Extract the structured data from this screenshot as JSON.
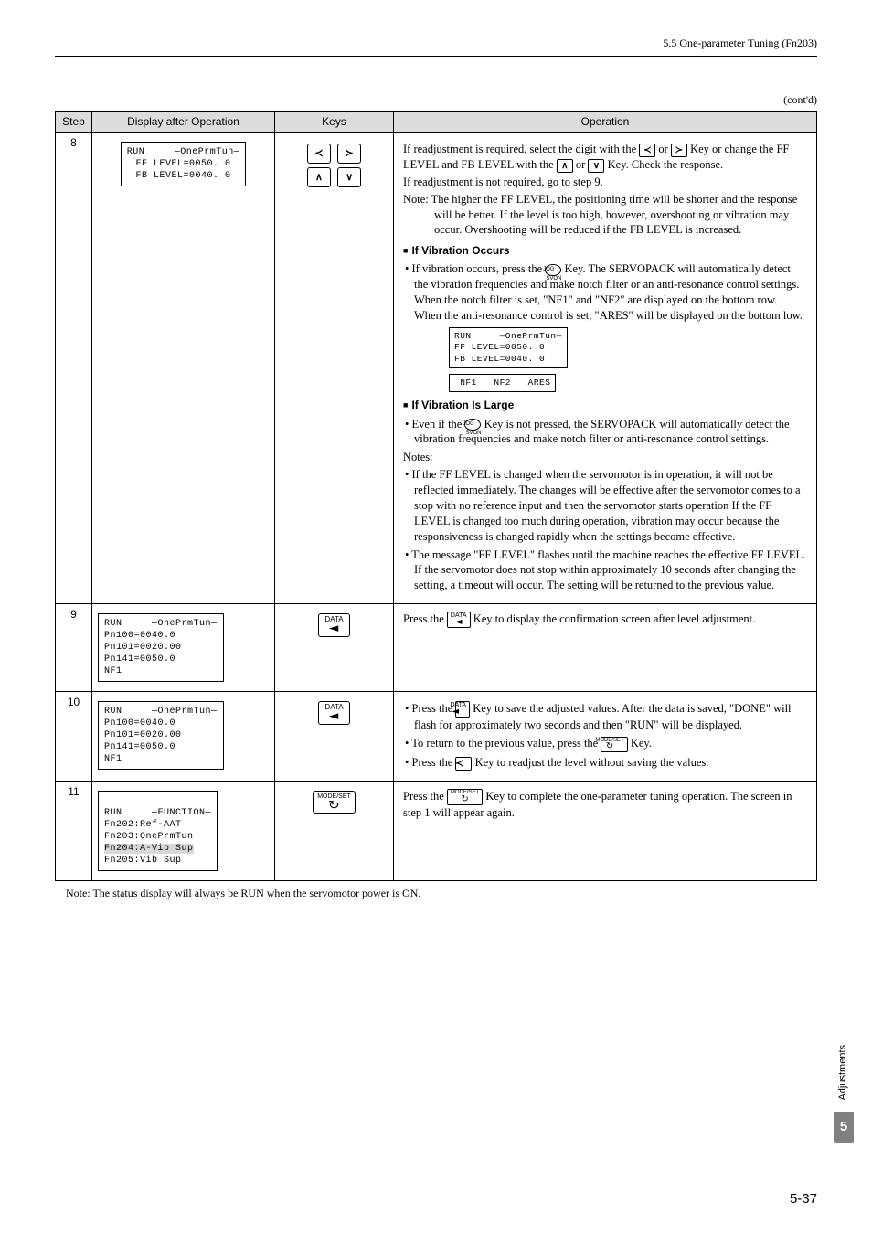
{
  "header": {
    "section": "5.5  One-parameter Tuning (Fn203)"
  },
  "contd": "(cont'd)",
  "table": {
    "headers": {
      "step": "Step",
      "display": "Display after Operation",
      "keys": "Keys",
      "operation": "Operation"
    },
    "rows": [
      {
        "step": "8",
        "lcd": "RUN     ―OnePrmTun―\nFF LEVEL=0050. 0\nFB LEVEL=0040. 0",
        "op": {
          "p1": "If readjustment is required, select the digit with the ",
          "p1b": " Key or change the FF LEVEL and FB LEVEL with the ",
          "p1c": " Key. Check the response.",
          "p2": "If readjustment is not required, go to step 9.",
          "note": "Note: The higher the FF LEVEL, the positioning time will be shorter and the response will be better. If the level is too high, however, overshooting or vibration may occur. Overshooting will be reduced if the FB LEVEL is increased.",
          "h1": "If Vibration Occurs",
          "b1a": "If vibration occurs, press the ",
          "b1b": " Key. The SERVOPACK will automatically detect the vibration frequencies and make notch filter or an anti-resonance control settings. When the notch filter is set, \"NF1\" and \"NF2\" are displayed on the bottom row. When the anti-resonance control is set, \"ARES\" will be displayed on the bottom low.",
          "lcd2": "RUN     ―OnePrmTun―\nFF LEVEL=0050. 0\nFB LEVEL=0040. 0",
          "lcd3": " NF1   NF2   ARES",
          "h2": "If Vibration Is Large",
          "b2a": "Even if the ",
          "b2b": " Key is not pressed, the SERVOPACK will automatically detect the vibration frequencies and make notch filter or anti-resonance control settings.",
          "notes_label": "Notes:",
          "b3": "If the FF LEVEL is changed when the servomotor is in operation, it will not be reflected immediately. The changes will be effective after the servomotor comes to a stop with no reference input and then the servomotor starts operation If the FF LEVEL is changed too much during operation, vibration may occur because the responsiveness is changed rapidly when the settings become effective.",
          "b4": "The message \"FF LEVEL\" flashes until the machine reaches the effective FF LEVEL. If the servomotor does not stop within approximately 10 seconds after changing the setting, a timeout will occur. The setting will be returned to the previous value."
        }
      },
      {
        "step": "9",
        "lcd": "RUN     ―OnePrmTun―\nPn100=0040.0\nPn101=0020.00\nPn141=0050.0\nNF1",
        "op": {
          "p1a": "Press the ",
          "p1b": " Key to display the confirmation screen after level adjustment."
        }
      },
      {
        "step": "10",
        "lcd": "RUN     ―OnePrmTun―\nPn100=0040.0\nPn101=0020.00\nPn141=0050.0\nNF1",
        "op": {
          "b1a": "Press the ",
          "b1b": " Key to save the adjusted values. After the data is saved, \"DONE\" will flash for approximately two seconds and then \"RUN\" will be displayed.",
          "b2a": "To return to the previous value, press the ",
          "b2b": " Key.",
          "b3a": "Press the ",
          "b3b": " Key to readjust the level without saving the values."
        }
      },
      {
        "step": "11",
        "lcd_lines": [
          "RUN     ―FUNCTION―",
          "Fn202:Ref-AAT",
          "Fn203:OnePrmTun",
          "Fn204:A-Vib Sup",
          "Fn205:Vib Sup"
        ],
        "op": {
          "p1a": "Press the ",
          "p1b": " Key to complete the one-parameter tuning operation. The screen in step 1 will appear again."
        }
      }
    ]
  },
  "footnote": "Note: The status display will always be RUN when the servomotor power is ON.",
  "side": {
    "label": "Adjustments",
    "num": "5"
  },
  "pagenum": "5-37",
  "glyphs": {
    "left": "≺",
    "right": "≻",
    "up": "∧",
    "down": "∨",
    "jog": "JOG\nSVON"
  }
}
